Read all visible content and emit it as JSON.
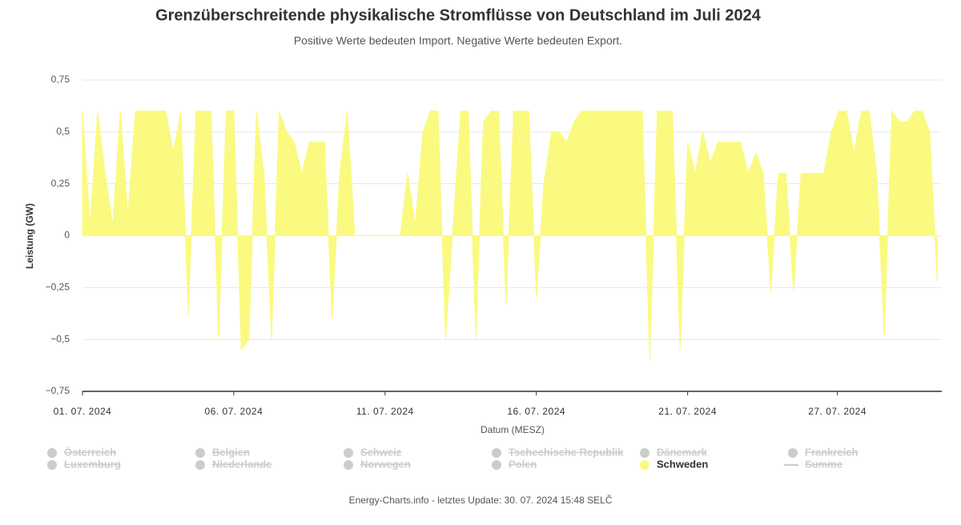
{
  "chart_data": {
    "type": "area",
    "title": "Grenzüberschreitende physikalische Stromflüsse von Deutschland im Juli 2024",
    "subtitle": "Positive Werte bedeuten Import. Negative Werte bedeuten Export.",
    "x_label": "Datum (MESZ)",
    "y_label": "Leistung (GW)",
    "footer": "Energy-Charts.info - letztes Update: 30. 07. 2024 15:48 SELČ",
    "xlim": [
      1,
      29.4
    ],
    "xticks": [
      {
        "value": 1,
        "label": "01. 07. 2024"
      },
      {
        "value": 6,
        "label": "06. 07. 2024"
      },
      {
        "value": 11,
        "label": "11. 07. 2024"
      },
      {
        "value": 16,
        "label": "16. 07. 2024"
      },
      {
        "value": 21,
        "label": "21. 07. 2024"
      },
      {
        "value": 25.95,
        "label": "27. 07. 2024"
      }
    ],
    "ylim": [
      -0.75,
      0.75
    ],
    "yticks": [
      {
        "value": 0.75,
        "label": "0,75"
      },
      {
        "value": 0.5,
        "label": "0,5"
      },
      {
        "value": 0.25,
        "label": "0,25"
      },
      0,
      {
        "value": -0.25,
        "label": "−0,25"
      },
      {
        "value": -0.5,
        "label": "−0,5"
      },
      {
        "value": -0.75,
        "label": "−0,75"
      }
    ],
    "grid": true,
    "x": [
      1,
      1.25,
      1.5,
      1.75,
      2,
      2.25,
      2.5,
      2.75,
      3,
      3.25,
      3.5,
      3.75,
      4,
      4.25,
      4.5,
      4.75,
      5,
      5.25,
      5.5,
      5.75,
      6,
      6.25,
      6.5,
      6.75,
      7,
      7.25,
      7.5,
      7.75,
      8,
      8.25,
      8.5,
      8.75,
      9,
      9.25,
      9.5,
      9.75,
      10,
      10.25,
      10.5,
      10.75,
      11,
      11.25,
      11.5,
      11.75,
      12,
      12.25,
      12.5,
      12.75,
      13,
      13.25,
      13.5,
      13.75,
      14,
      14.25,
      14.5,
      14.75,
      15,
      15.25,
      15.5,
      15.75,
      16,
      16.25,
      16.5,
      16.75,
      17,
      17.25,
      17.5,
      17.75,
      18,
      18.25,
      18.5,
      18.75,
      19,
      19.25,
      19.5,
      19.75,
      20,
      20.25,
      20.5,
      20.75,
      21,
      21.25,
      21.5,
      21.75,
      22,
      22.25,
      22.5,
      22.75,
      23,
      23.25,
      23.5,
      23.75,
      24,
      24.25,
      24.5,
      24.75,
      25,
      25.25,
      25.5,
      25.75,
      26,
      26.25,
      26.5,
      26.75,
      27,
      27.25,
      27.5,
      27.75,
      28,
      28.25,
      28.5,
      28.75,
      29,
      29.25
    ],
    "series": [
      {
        "name": "Schweden",
        "color": "#fafa80",
        "values": [
          0.6,
          0.05,
          0.6,
          0.3,
          0.05,
          0.6,
          0.1,
          0.6,
          0.6,
          0.6,
          0.6,
          0.6,
          0.4,
          0.6,
          -0.38,
          0.6,
          0.6,
          0.6,
          -0.5,
          0.6,
          0.6,
          -0.55,
          -0.5,
          0.6,
          0.3,
          -0.5,
          0.6,
          0.5,
          0.45,
          0.3,
          0.45,
          0.45,
          0.45,
          -0.4,
          0.3,
          0.6,
          0,
          0,
          0,
          0,
          0,
          0,
          0,
          0.3,
          0.05,
          0.5,
          0.6,
          0.6,
          -0.5,
          0.05,
          0.6,
          0.6,
          -0.5,
          0.55,
          0.6,
          0.6,
          -0.33,
          0.6,
          0.6,
          0.6,
          -0.3,
          0.25,
          0.5,
          0.5,
          0.45,
          0.55,
          0.6,
          0.6,
          0.6,
          0.6,
          0.6,
          0.6,
          0.6,
          0.6,
          0.6,
          -0.6,
          0.6,
          0.6,
          0.6,
          -0.55,
          0.45,
          0.3,
          0.5,
          0.35,
          0.45,
          0.45,
          0.45,
          0.45,
          0.3,
          0.4,
          0.3,
          -0.27,
          0.3,
          0.3,
          -0.27,
          0.3,
          0.3,
          0.3,
          0.3,
          0.5,
          0.6,
          0.6,
          0.4,
          0.6,
          0.6,
          0.3,
          -0.48,
          0.6,
          0.55,
          0.55,
          0.6,
          0.6,
          0.5,
          -0.22
        ]
      }
    ],
    "hidden_series": [
      {
        "name": "Österreich",
        "symbol": "circle"
      },
      {
        "name": "Belgien",
        "symbol": "circle"
      },
      {
        "name": "Schweiz",
        "symbol": "circle"
      },
      {
        "name": "Tschechische Republik",
        "symbol": "circle"
      },
      {
        "name": "Dänemark",
        "symbol": "circle"
      },
      {
        "name": "Frankreich",
        "symbol": "circle"
      },
      {
        "name": "Luxemburg",
        "symbol": "circle"
      },
      {
        "name": "Niederlande",
        "symbol": "circle"
      },
      {
        "name": "Norwegen",
        "symbol": "circle"
      },
      {
        "name": "Polen",
        "symbol": "circle"
      },
      {
        "name": "Summe",
        "symbol": "line"
      }
    ],
    "hidden_color": "#cccccc"
  }
}
